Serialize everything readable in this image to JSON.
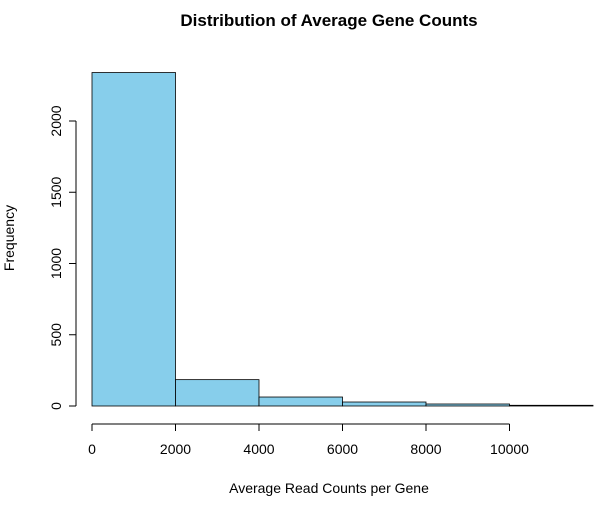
{
  "chart_data": {
    "type": "bar",
    "title": "Distribution of Average Gene Counts",
    "xlabel": "Average Read Counts per Gene",
    "ylabel": "Frequency",
    "bins": [
      {
        "x0": 0,
        "x1": 2000,
        "count": 2340
      },
      {
        "x0": 2000,
        "x1": 4000,
        "count": 185
      },
      {
        "x0": 4000,
        "x1": 6000,
        "count": 63
      },
      {
        "x0": 6000,
        "x1": 8000,
        "count": 28
      },
      {
        "x0": 8000,
        "x1": 10000,
        "count": 14
      },
      {
        "x0": 10000,
        "x1": 12000,
        "count": 5
      }
    ],
    "xticks": [
      0,
      2000,
      4000,
      6000,
      8000,
      10000
    ],
    "yticks": [
      0,
      500,
      1000,
      1500,
      2000
    ],
    "xlim": [
      0,
      12000
    ],
    "ylim": [
      0,
      2400
    ],
    "bar_fill": "#87CEEB",
    "bar_stroke": "#000000",
    "grid": false,
    "legend": "none"
  }
}
